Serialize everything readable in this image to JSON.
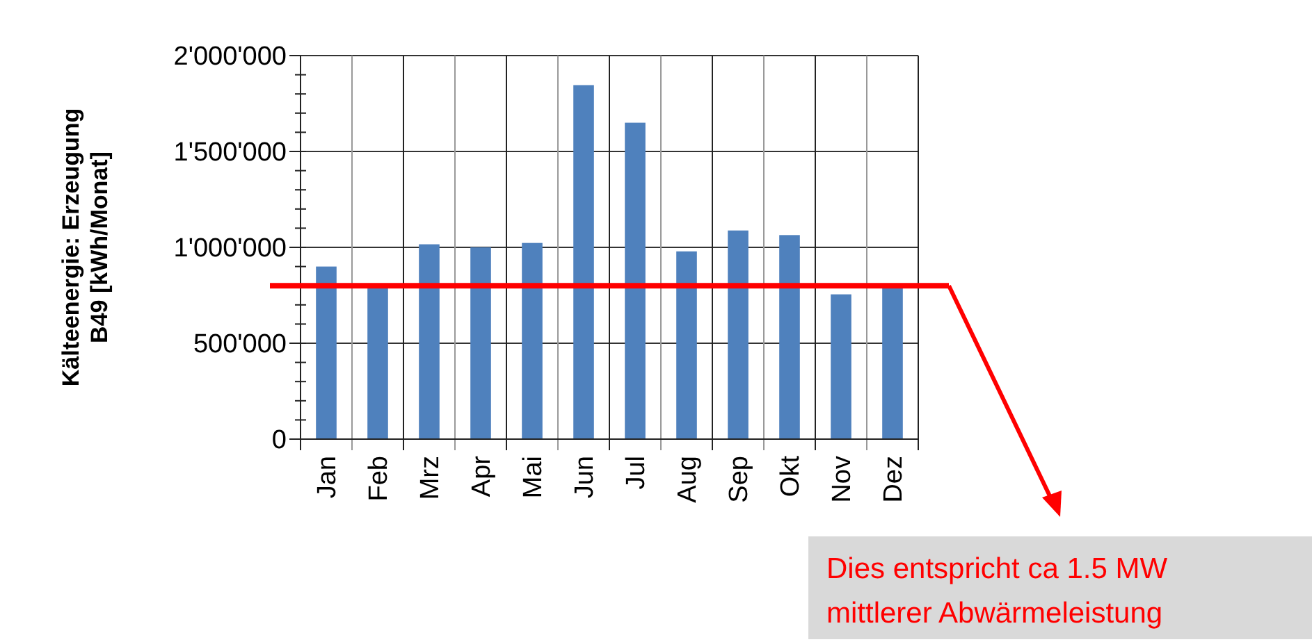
{
  "chart_data": {
    "type": "bar",
    "ylabel": "Kälteenergie: Erzeugung B49 [kWh/Monat]",
    "categories": [
      "Jan",
      "Feb",
      "Mrz",
      "Apr",
      "Mai",
      "Jun",
      "Jul",
      "Aug",
      "Sep",
      "Okt",
      "Nov",
      "Dez"
    ],
    "values": [
      900000,
      790000,
      1016000,
      1000000,
      1023000,
      1846000,
      1650000,
      979000,
      1088000,
      1064000,
      755000,
      790000
    ],
    "color": "#4f81bd",
    "ylim": [
      0,
      2000000
    ],
    "yticks": [
      {
        "value": 0,
        "label": "0"
      },
      {
        "value": 500000,
        "label": "500'000"
      },
      {
        "value": 1000000,
        "label": "1'000'000"
      },
      {
        "value": 1500000,
        "label": "1'500'000"
      },
      {
        "value": 2000000,
        "label": "2'000'000"
      }
    ],
    "grid": true,
    "ref_lines": [
      {
        "axis": "y",
        "value": 800000,
        "color": "#ff0000"
      }
    ],
    "annotations": [
      "Dies entspricht ca 1.5 MW mittlerer Abwärmeleistung"
    ]
  }
}
